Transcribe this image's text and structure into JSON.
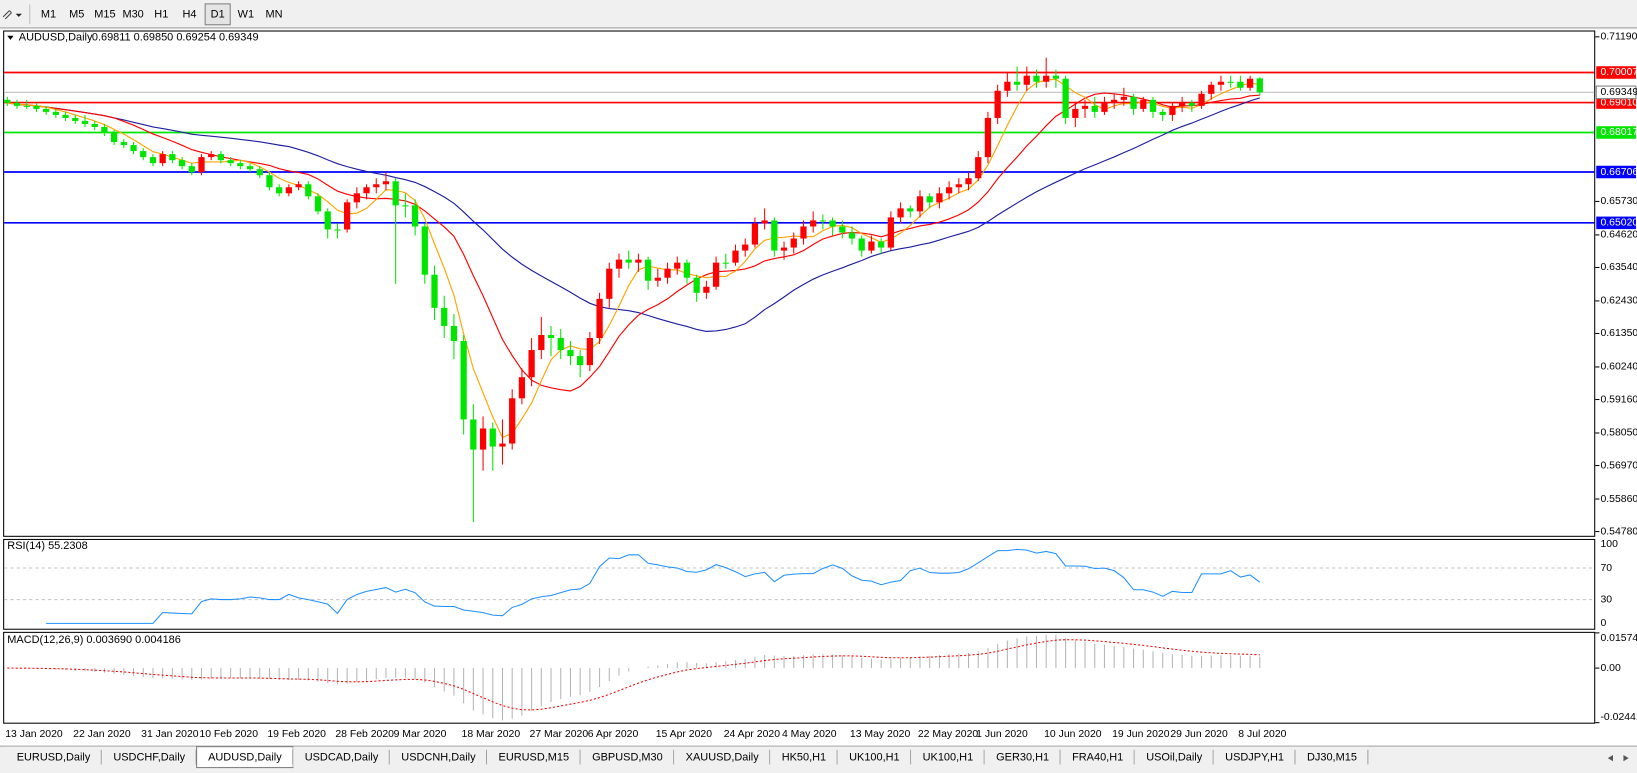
{
  "toolbar": {
    "timeframes": [
      "M1",
      "M5",
      "M15",
      "M30",
      "H1",
      "H4",
      "D1",
      "W1",
      "MN"
    ],
    "active": 6
  },
  "chart": {
    "symbol": "AUDUSD,Daily",
    "ohlc": "0.69811 0.69850 0.69254 0.69349",
    "up_color": "#ff0000",
    "down_color": "#00e600",
    "candles": [
      [
        0.691,
        0.692,
        0.689,
        0.69
      ],
      [
        0.69,
        0.691,
        0.688,
        0.689
      ],
      [
        0.689,
        0.691,
        0.688,
        0.689
      ],
      [
        0.689,
        0.69,
        0.687,
        0.688
      ],
      [
        0.688,
        0.689,
        0.686,
        0.687
      ],
      [
        0.687,
        0.688,
        0.685,
        0.686
      ],
      [
        0.686,
        0.687,
        0.684,
        0.685
      ],
      [
        0.685,
        0.686,
        0.683,
        0.684
      ],
      [
        0.684,
        0.686,
        0.682,
        0.683
      ],
      [
        0.683,
        0.684,
        0.681,
        0.682
      ],
      [
        0.682,
        0.683,
        0.679,
        0.68
      ],
      [
        0.68,
        0.681,
        0.676,
        0.677
      ],
      [
        0.677,
        0.678,
        0.675,
        0.676
      ],
      [
        0.676,
        0.677,
        0.673,
        0.674
      ],
      [
        0.674,
        0.675,
        0.671,
        0.672
      ],
      [
        0.672,
        0.673,
        0.669,
        0.67
      ],
      [
        0.67,
        0.674,
        0.669,
        0.673
      ],
      [
        0.673,
        0.674,
        0.67,
        0.671
      ],
      [
        0.671,
        0.672,
        0.668,
        0.669
      ],
      [
        0.669,
        0.67,
        0.666,
        0.667
      ],
      [
        0.667,
        0.673,
        0.666,
        0.672
      ],
      [
        0.672,
        0.674,
        0.671,
        0.673
      ],
      [
        0.673,
        0.674,
        0.67,
        0.671
      ],
      [
        0.671,
        0.672,
        0.669,
        0.67
      ],
      [
        0.67,
        0.671,
        0.668,
        0.669
      ],
      [
        0.669,
        0.67,
        0.667,
        0.668
      ],
      [
        0.668,
        0.669,
        0.665,
        0.666
      ],
      [
        0.666,
        0.667,
        0.661,
        0.662
      ],
      [
        0.662,
        0.663,
        0.659,
        0.66
      ],
      [
        0.66,
        0.663,
        0.659,
        0.662
      ],
      [
        0.662,
        0.664,
        0.661,
        0.663
      ],
      [
        0.663,
        0.664,
        0.658,
        0.659
      ],
      [
        0.659,
        0.66,
        0.653,
        0.654
      ],
      [
        0.654,
        0.655,
        0.645,
        0.648
      ],
      [
        0.648,
        0.65,
        0.645,
        0.648
      ],
      [
        0.648,
        0.658,
        0.647,
        0.657
      ],
      [
        0.657,
        0.662,
        0.655,
        0.66
      ],
      [
        0.66,
        0.663,
        0.658,
        0.662
      ],
      [
        0.662,
        0.665,
        0.66,
        0.663
      ],
      [
        0.663,
        0.667,
        0.661,
        0.664
      ],
      [
        0.664,
        0.665,
        0.63,
        0.656
      ],
      [
        0.656,
        0.66,
        0.652,
        0.656
      ],
      [
        0.656,
        0.658,
        0.646,
        0.649
      ],
      [
        0.649,
        0.65,
        0.63,
        0.633
      ],
      [
        0.633,
        0.636,
        0.618,
        0.622
      ],
      [
        0.622,
        0.626,
        0.612,
        0.616
      ],
      [
        0.616,
        0.62,
        0.605,
        0.611
      ],
      [
        0.611,
        0.613,
        0.58,
        0.585
      ],
      [
        0.585,
        0.59,
        0.551,
        0.575
      ],
      [
        0.575,
        0.586,
        0.568,
        0.582
      ],
      [
        0.582,
        0.584,
        0.568,
        0.576
      ],
      [
        0.576,
        0.585,
        0.57,
        0.577
      ],
      [
        0.577,
        0.595,
        0.575,
        0.592
      ],
      [
        0.592,
        0.602,
        0.59,
        0.599
      ],
      [
        0.599,
        0.612,
        0.596,
        0.608
      ],
      [
        0.608,
        0.619,
        0.605,
        0.613
      ],
      [
        0.613,
        0.616,
        0.606,
        0.612
      ],
      [
        0.612,
        0.615,
        0.605,
        0.608
      ],
      [
        0.608,
        0.611,
        0.603,
        0.606
      ],
      [
        0.606,
        0.608,
        0.599,
        0.603
      ],
      [
        0.603,
        0.614,
        0.601,
        0.612
      ],
      [
        0.612,
        0.627,
        0.61,
        0.625
      ],
      [
        0.625,
        0.637,
        0.622,
        0.635
      ],
      [
        0.635,
        0.64,
        0.632,
        0.638
      ],
      [
        0.638,
        0.641,
        0.635,
        0.637
      ],
      [
        0.637,
        0.64,
        0.634,
        0.638
      ],
      [
        0.638,
        0.639,
        0.628,
        0.631
      ],
      [
        0.631,
        0.635,
        0.629,
        0.632
      ],
      [
        0.632,
        0.637,
        0.63,
        0.635
      ],
      [
        0.635,
        0.639,
        0.633,
        0.637
      ],
      [
        0.637,
        0.638,
        0.63,
        0.632
      ],
      [
        0.632,
        0.633,
        0.624,
        0.627
      ],
      [
        0.627,
        0.631,
        0.625,
        0.629
      ],
      [
        0.629,
        0.639,
        0.628,
        0.637
      ],
      [
        0.637,
        0.64,
        0.635,
        0.637
      ],
      [
        0.637,
        0.643,
        0.636,
        0.641
      ],
      [
        0.641,
        0.645,
        0.639,
        0.643
      ],
      [
        0.643,
        0.652,
        0.642,
        0.65
      ],
      [
        0.65,
        0.655,
        0.648,
        0.651
      ],
      [
        0.651,
        0.652,
        0.639,
        0.641
      ],
      [
        0.641,
        0.644,
        0.638,
        0.642
      ],
      [
        0.642,
        0.647,
        0.64,
        0.645
      ],
      [
        0.645,
        0.651,
        0.643,
        0.649
      ],
      [
        0.649,
        0.654,
        0.647,
        0.651
      ],
      [
        0.651,
        0.653,
        0.648,
        0.651
      ],
      [
        0.651,
        0.652,
        0.646,
        0.649
      ],
      [
        0.649,
        0.651,
        0.645,
        0.647
      ],
      [
        0.647,
        0.649,
        0.643,
        0.645
      ],
      [
        0.645,
        0.646,
        0.639,
        0.641
      ],
      [
        0.641,
        0.646,
        0.64,
        0.644
      ],
      [
        0.644,
        0.645,
        0.64,
        0.642
      ],
      [
        0.642,
        0.654,
        0.641,
        0.652
      ],
      [
        0.652,
        0.657,
        0.65,
        0.655
      ],
      [
        0.655,
        0.656,
        0.652,
        0.654
      ],
      [
        0.654,
        0.661,
        0.652,
        0.659
      ],
      [
        0.659,
        0.66,
        0.655,
        0.657
      ],
      [
        0.657,
        0.662,
        0.655,
        0.66
      ],
      [
        0.66,
        0.664,
        0.658,
        0.662
      ],
      [
        0.662,
        0.665,
        0.66,
        0.663
      ],
      [
        0.663,
        0.667,
        0.661,
        0.665
      ],
      [
        0.665,
        0.674,
        0.664,
        0.672
      ],
      [
        0.672,
        0.687,
        0.67,
        0.685
      ],
      [
        0.685,
        0.696,
        0.683,
        0.694
      ],
      [
        0.694,
        0.7,
        0.692,
        0.697
      ],
      [
        0.697,
        0.702,
        0.694,
        0.696
      ],
      [
        0.696,
        0.702,
        0.694,
        0.699
      ],
      [
        0.699,
        0.701,
        0.695,
        0.697
      ],
      [
        0.697,
        0.705,
        0.695,
        0.699
      ],
      [
        0.699,
        0.701,
        0.695,
        0.698
      ],
      [
        0.698,
        0.699,
        0.683,
        0.685
      ],
      [
        0.685,
        0.69,
        0.682,
        0.688
      ],
      [
        0.688,
        0.691,
        0.685,
        0.689
      ],
      [
        0.689,
        0.692,
        0.685,
        0.687
      ],
      [
        0.687,
        0.692,
        0.686,
        0.69
      ],
      [
        0.69,
        0.693,
        0.688,
        0.691
      ],
      [
        0.691,
        0.695,
        0.689,
        0.692
      ],
      [
        0.692,
        0.693,
        0.686,
        0.688
      ],
      [
        0.688,
        0.692,
        0.687,
        0.691
      ],
      [
        0.691,
        0.692,
        0.685,
        0.687
      ],
      [
        0.687,
        0.688,
        0.684,
        0.686
      ],
      [
        0.686,
        0.69,
        0.684,
        0.689
      ],
      [
        0.689,
        0.692,
        0.687,
        0.69
      ],
      [
        0.69,
        0.691,
        0.687,
        0.689
      ],
      [
        0.689,
        0.694,
        0.688,
        0.693
      ],
      [
        0.693,
        0.697,
        0.691,
        0.696
      ],
      [
        0.696,
        0.699,
        0.694,
        0.697
      ],
      [
        0.697,
        0.699,
        0.695,
        0.697
      ],
      [
        0.697,
        0.699,
        0.694,
        0.695
      ],
      [
        0.695,
        0.699,
        0.694,
        0.698
      ],
      [
        0.69811,
        0.6985,
        0.69254,
        0.69349
      ]
    ],
    "dates": [
      "13 Jan 2020",
      null,
      null,
      null,
      null,
      null,
      null,
      "22 Jan 2020",
      null,
      null,
      null,
      null,
      null,
      null,
      "31 Jan 2020",
      null,
      null,
      null,
      null,
      null,
      "10 Feb 2020",
      null,
      null,
      null,
      null,
      null,
      null,
      "19 Feb 2020",
      null,
      null,
      null,
      null,
      null,
      null,
      "28 Feb 2020",
      null,
      null,
      null,
      null,
      null,
      "9 Mar 2020",
      null,
      null,
      null,
      null,
      null,
      null,
      "18 Mar 2020",
      null,
      null,
      null,
      null,
      null,
      null,
      "27 Mar 2020",
      null,
      null,
      null,
      null,
      null,
      "6 Apr 2020",
      null,
      null,
      null,
      null,
      null,
      null,
      "15 Apr 2020",
      null,
      null,
      null,
      null,
      null,
      null,
      "24 Apr 2020",
      null,
      null,
      null,
      null,
      null,
      "4 May 2020",
      null,
      null,
      null,
      null,
      null,
      null,
      "13 May 2020",
      null,
      null,
      null,
      null,
      null,
      null,
      "22 May 2020",
      null,
      null,
      null,
      null,
      null,
      "1 Jun 2020",
      null,
      null,
      null,
      null,
      null,
      null,
      "10 Jun 2020",
      null,
      null,
      null,
      null,
      null,
      null,
      "19 Jun 2020",
      null,
      null,
      null,
      null,
      null,
      "29 Jun 2020",
      null,
      null,
      null,
      null,
      null,
      null,
      "8 Jul 2020",
      null,
      null
    ],
    "ylim": [
      0.5464,
      0.714
    ],
    "yticks": [
      {
        "value": 0.7119,
        "label": "0.71190"
      },
      {
        "value": 0.6573,
        "label": "0.65730"
      },
      {
        "value": 0.6462,
        "label": "0.64620"
      },
      {
        "value": 0.6354,
        "label": "0.63540"
      },
      {
        "value": 0.6243,
        "label": "0.62430"
      },
      {
        "value": 0.6135,
        "label": "0.61350"
      },
      {
        "value": 0.6024,
        "label": "0.60240"
      },
      {
        "value": 0.5916,
        "label": "0.59160"
      },
      {
        "value": 0.5805,
        "label": "0.58050"
      },
      {
        "value": 0.5697,
        "label": "0.56970"
      },
      {
        "value": 0.5586,
        "label": "0.55860"
      },
      {
        "value": 0.5478,
        "label": "0.54780"
      }
    ],
    "levels": [
      {
        "value": 0.70007,
        "label": "0.70007",
        "color": "#ff0000"
      },
      {
        "value": 0.6901,
        "label": "0.69010",
        "color": "#ff0000"
      },
      {
        "value": 0.68017,
        "label": "0.68017",
        "color": "#00e600"
      },
      {
        "value": 0.66706,
        "label": "0.66706",
        "color": "#0000ff"
      },
      {
        "value": 0.6502,
        "label": "0.65020",
        "color": "#0000ff"
      }
    ],
    "bid": {
      "value": 0.69349,
      "label": "0.69349"
    },
    "ma_colors": [
      "#ffa500",
      "#ff0000",
      "#1e1ea0"
    ],
    "rsi": {
      "title": "RSI(14) 55.2308",
      "ylim": [
        -6.8,
        106.8
      ],
      "yticks": [
        100,
        70,
        30,
        0
      ],
      "color": "#1e90ff"
    },
    "macd": {
      "title": "MACD(12,26,9) 0.003690 0.004186",
      "ylim": [
        -0.02441,
        0.015741
      ],
      "yticks": [
        0.015741,
        {
          "value": 0,
          "label": "0.00"
        },
        -0.02441
      ],
      "hist_color": "#b4b4b4",
      "signal_color": "#ff0000"
    }
  },
  "tabs": {
    "items": [
      "EURUSD,Daily",
      "USDCHF,Daily",
      "AUDUSD,Daily",
      "USDCAD,Daily",
      "USDCNH,Daily",
      "EURUSD,M15",
      "GBPUSD,M30",
      "XAUUSD,Daily",
      "HK50,H1",
      "UK100,H1",
      "UK100,H1",
      "GER30,H1",
      "FRA40,H1",
      "USOil,Daily",
      "USDJPY,H1",
      "DJ30,M15"
    ],
    "active": 2
  }
}
